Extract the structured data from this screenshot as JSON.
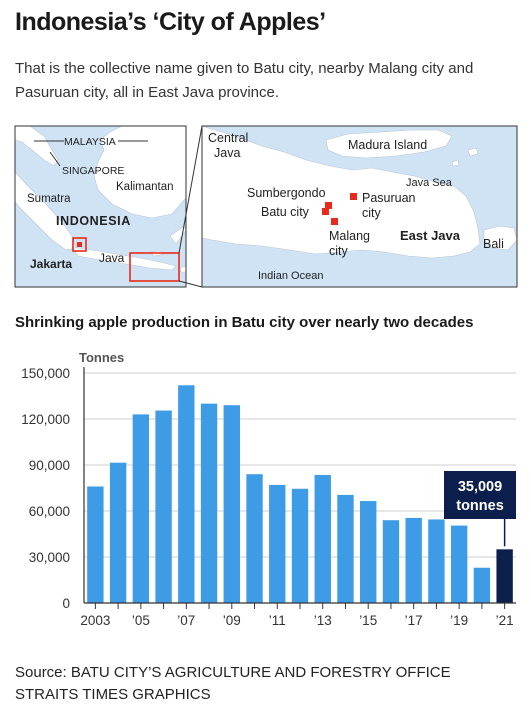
{
  "header": {
    "title": "Indonesia’s ‘City of Apples’",
    "subtitle": "That is the collective name given to Batu city, nearby Malang city and Pasuruan city, all in East Java province."
  },
  "inset_map": {
    "labels": {
      "malaysia": "MALAYSIA",
      "singapore": "SINGAPORE",
      "sumatra": "Sumatra",
      "kalimantan": "Kalimantan",
      "indonesia": "INDONESIA",
      "jakarta": "Jakarta",
      "java": "Java"
    }
  },
  "detail_map": {
    "labels": {
      "central_java_1": "Central",
      "central_java_2": "Java",
      "madura": "Madura Island",
      "java_sea": "Java Sea",
      "sumbergondo": "Sumbergondo",
      "batu": "Batu city",
      "pasuruan_1": "Pasuruan",
      "pasuruan_2": "city",
      "malang_1": "Malang",
      "malang_2": "city",
      "east_java": "East Java",
      "bali": "Bali",
      "indian_ocean": "Indian Ocean"
    }
  },
  "colors": {
    "land": "#ffffff",
    "sea": "#cfe3f5",
    "marker": "#e8291c",
    "bar": "#3e9be6",
    "bar_highlight": "#0c1f4c",
    "axis": "#333333",
    "grid": "#cfcfcf"
  },
  "chart_heading": "Shrinking apple production in Batu city over nearly two decades",
  "chart_data": {
    "type": "bar",
    "ylabel": "Tonnes",
    "categories": [
      "2003",
      "2004",
      "2005",
      "2006",
      "2007",
      "2008",
      "2009",
      "2010",
      "2011",
      "2012",
      "2013",
      "2014",
      "2015",
      "2016",
      "2017",
      "2018",
      "2019",
      "2020",
      "2021"
    ],
    "x_tick_labels": [
      "2003",
      "",
      "’05",
      "",
      "’07",
      "",
      "’09",
      "",
      "’11",
      "",
      "’13",
      "",
      "’15",
      "",
      "’17",
      "",
      "’19",
      "",
      "’21"
    ],
    "values": [
      76000,
      91500,
      123000,
      125500,
      142000,
      130000,
      129000,
      84000,
      77000,
      74500,
      83500,
      70500,
      66500,
      54000,
      55500,
      54500,
      50500,
      23000,
      35009
    ],
    "ylim": [
      0,
      150000
    ],
    "y_ticks": [
      0,
      30000,
      60000,
      90000,
      120000,
      150000
    ],
    "y_tick_labels": [
      "0",
      "30,000",
      "60,000",
      "90,000",
      "120,000",
      "150,000"
    ],
    "highlight_index": 18,
    "callout": {
      "line1": "35,009",
      "line2": "tonnes"
    },
    "grid": true
  },
  "source": {
    "line1": "Source: BATU CITY’S AGRICULTURE AND FORESTRY OFFICE",
    "line2": "STRAITS TIMES GRAPHICS"
  }
}
